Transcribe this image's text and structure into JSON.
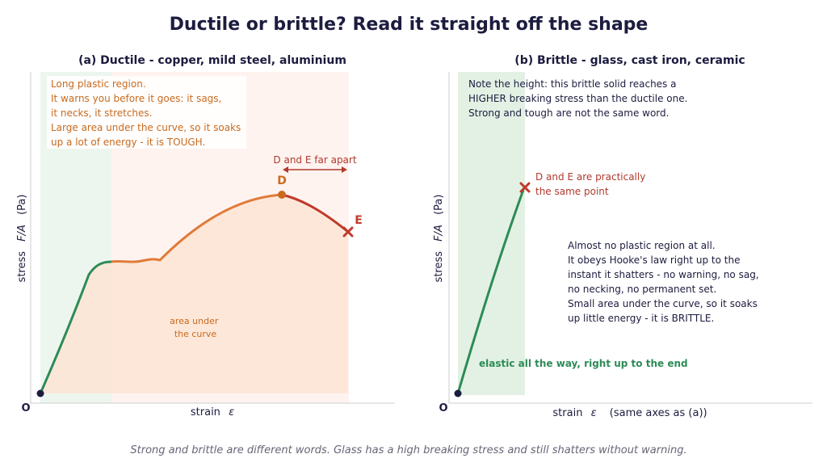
{
  "title": "Ductile or brittle? Read it straight off the shape",
  "footer": "Strong and brittle are different words. Glass has a high breaking stress and still shatters without warning.",
  "colors": {
    "elastic": "#2e8b57",
    "plastic": "#e07b39",
    "necking": "#c0392b",
    "annotation_orange": "#c96a1e",
    "annotation_red": "#b03a2e",
    "text_dark": "#1c1c3f",
    "footer_text": "#666677"
  },
  "panel_a": {
    "title": "(a) Ductile - copper, mild steel, aluminium",
    "note_lines": [
      "Long plastic region.",
      "It warns you before it goes: it sags,",
      "it necks, it stretches.",
      "Large area under the curve, so it soaks",
      "up a lot of energy - it is TOUGH."
    ],
    "de_label": "D and E far apart",
    "point_d": "D",
    "point_e": "E",
    "area_label_line1": "area under",
    "area_label_line2": "the curve",
    "ylabel_word": "stress",
    "ylabel_symbol": "F/A",
    "ylabel_unit": "(Pa)",
    "xlabel": "strain",
    "xlabel_symbol": "ε",
    "origin": "O"
  },
  "panel_b": {
    "title": "(b) Brittle - glass, cast iron, ceramic",
    "note_lines": [
      "Note the height: this brittle solid reaches a",
      "HIGHER breaking stress than the ductile one.",
      "Strong and tough are not the same word."
    ],
    "de_lines": [
      "D and E are practically",
      "the same point"
    ],
    "body_lines": [
      "Almost no plastic region at all.",
      "It obeys Hooke's law right up to the",
      "instant it shatters - no warning, no sag,",
      "no necking, no permanent set.",
      "Small area under the curve, so it soaks",
      "up little energy - it is BRITTLE."
    ],
    "elastic_label": "elastic all the way, right up to the end",
    "ylabel_word": "stress",
    "ylabel_symbol": "F/A",
    "ylabel_unit": "(Pa)",
    "xlabel": "strain",
    "xlabel_symbol": "ε",
    "xlabel_suffix": "(same axes as (a))",
    "origin": "O"
  }
}
